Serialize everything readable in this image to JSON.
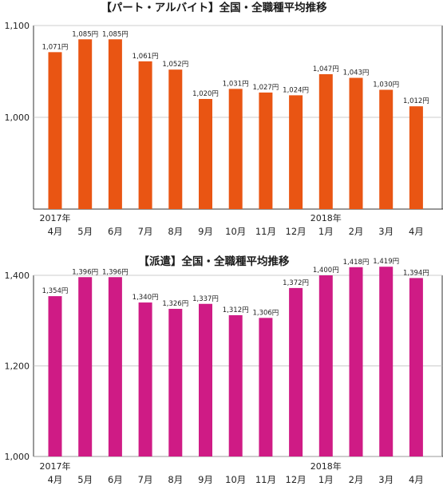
{
  "chart_data": [
    {
      "type": "bar",
      "title": "【パート・アルバイト】全国・全職種平均推移",
      "categories": [
        "4月",
        "5月",
        "6月",
        "7月",
        "8月",
        "9月",
        "10月",
        "11月",
        "12月",
        "1月",
        "2月",
        "3月",
        "4月"
      ],
      "year_labels": [
        {
          "index": 0,
          "text": "2017年"
        },
        {
          "index": 9,
          "text": "2018年"
        }
      ],
      "values": [
        1071,
        1085,
        1085,
        1061,
        1052,
        1020,
        1031,
        1027,
        1024,
        1047,
        1043,
        1030,
        1012
      ],
      "data_labels": [
        "1,071円",
        "1,085円",
        "1,085円",
        "1,061円",
        "1,052円",
        "1,020円",
        "1,031円",
        "1,027円",
        "1,024円",
        "1,047円",
        "1,043円",
        "1,030円",
        "1,012円"
      ],
      "yticks": [
        "1,000",
        "1,100"
      ],
      "ytick_values": [
        1000,
        1100
      ],
      "ylim": [
        900,
        1100
      ],
      "color": "#e95513",
      "grid": true
    },
    {
      "type": "bar",
      "title": "【派遣】全国・全職種平均推移",
      "categories": [
        "4月",
        "5月",
        "6月",
        "7月",
        "8月",
        "9月",
        "10月",
        "11月",
        "12月",
        "1月",
        "2月",
        "3月",
        "4月"
      ],
      "year_labels": [
        {
          "index": 0,
          "text": "2017年"
        },
        {
          "index": 9,
          "text": "2018年"
        }
      ],
      "values": [
        1354,
        1396,
        1396,
        1340,
        1326,
        1337,
        1312,
        1306,
        1372,
        1400,
        1418,
        1419,
        1394
      ],
      "data_labels": [
        "1,354円",
        "1,396円",
        "1,396円",
        "1,340円",
        "1,326円",
        "1,337円",
        "1,312円",
        "1,306円",
        "1,372円",
        "1,400円",
        "1,418円",
        "1,419円",
        "1,394円"
      ],
      "yticks": [
        "1,000",
        "1,200",
        "1,400"
      ],
      "ytick_values": [
        1000,
        1200,
        1400
      ],
      "ylim": [
        1000,
        1400
      ],
      "color": "#cf1b85",
      "grid": true
    }
  ]
}
